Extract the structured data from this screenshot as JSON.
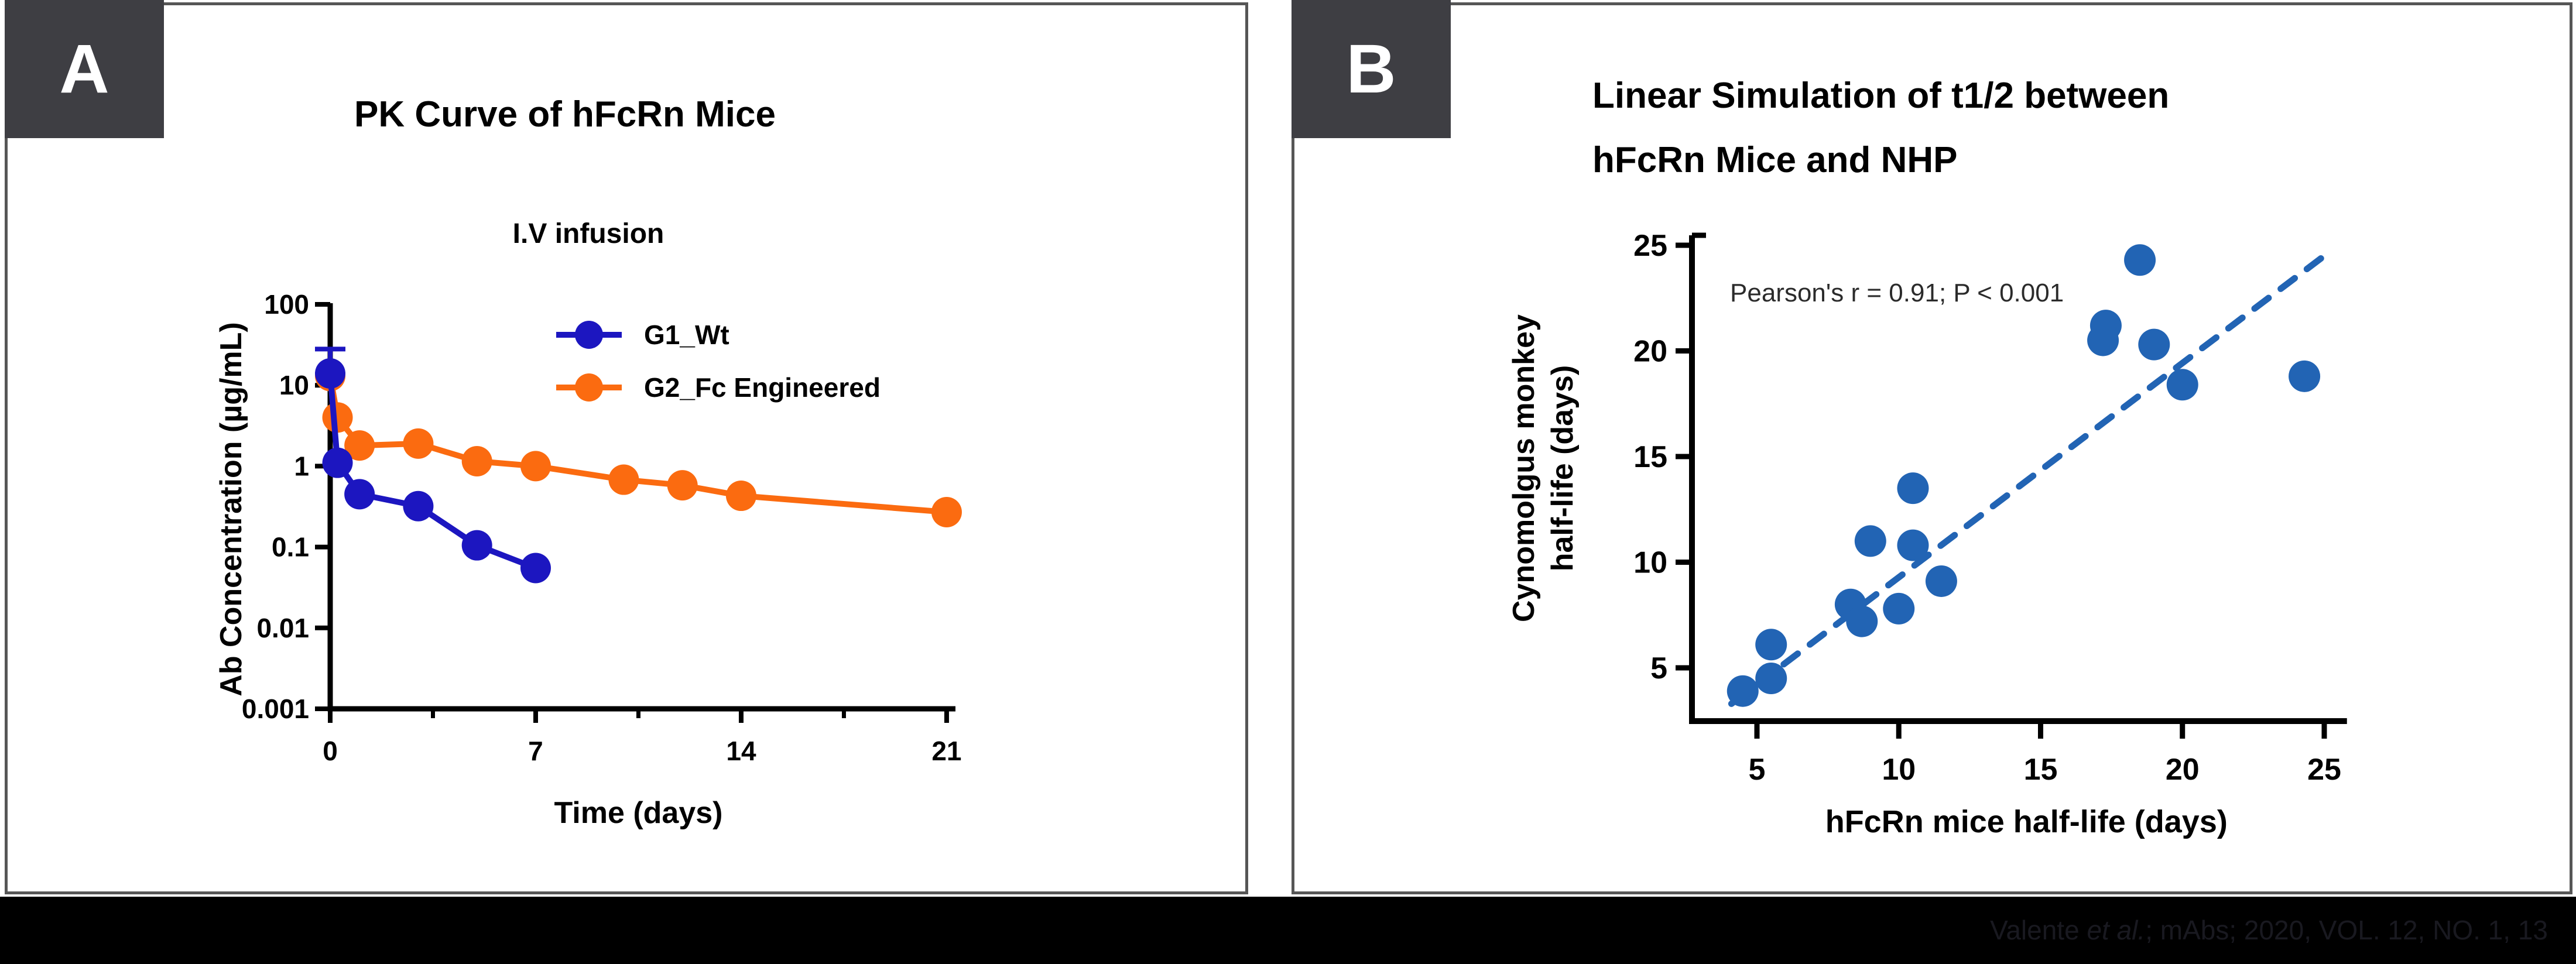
{
  "panels": {
    "a_label": "A",
    "b_label": "B"
  },
  "colors": {
    "badge_bg": "#3e3e43",
    "panel_border": "#565656",
    "axis": "#000000",
    "g1_blue": "#1c16c0",
    "g2_orange": "#fb6b10",
    "scatter_blue": "#2264b4",
    "annotation_text": "#2b2b2b",
    "bottom_bar": "#000000",
    "citation_text": "#191920"
  },
  "citation": {
    "prefix": "Valente ",
    "italic": "et al.",
    "suffix": "; mAbs; 2020, VOL. 12, NO. 1, 13"
  },
  "chart_data": [
    {
      "type": "line",
      "panel": "A",
      "title": "PK Curve of hFcRn Mice",
      "subtitle": "I.V infusion",
      "xlabel": "Time (days)",
      "ylabel": "Ab Concentration (µg/mL)",
      "x_axis": {
        "ticks": [
          0,
          7,
          14,
          21
        ],
        "minor_ticks": [
          3.5,
          10.5,
          17.5
        ],
        "range": [
          0,
          21.3
        ]
      },
      "y_axis": {
        "scale": "log",
        "tick_labels": [
          "100",
          "10",
          "1",
          "0.1",
          "0.01",
          "0.001"
        ],
        "tick_values": [
          100,
          10,
          1,
          0.1,
          0.01,
          0.001
        ],
        "range": [
          0.001,
          100
        ]
      },
      "legend_position": "top-inside",
      "grid": false,
      "series": [
        {
          "name": "G1_Wt",
          "color": "#1c16c0",
          "x": [
            0,
            0.25,
            1,
            3,
            5,
            7
          ],
          "y": [
            14,
            1.1,
            0.45,
            0.32,
            0.105,
            0.055
          ],
          "error_high": [
            28,
            null,
            null,
            null,
            null,
            null
          ]
        },
        {
          "name": "G2_Fc Engineered",
          "color": "#fb6b10",
          "x": [
            0,
            0.25,
            1,
            3,
            5,
            7,
            10,
            12,
            14,
            21
          ],
          "y": [
            13,
            4,
            1.8,
            1.9,
            1.15,
            1.0,
            0.68,
            0.58,
            0.43,
            0.27
          ],
          "error_high": [
            null,
            null,
            null,
            null,
            null,
            null,
            null,
            null,
            null,
            null
          ]
        }
      ]
    },
    {
      "type": "scatter",
      "panel": "B",
      "title_lines": [
        "Linear Simulation of t1/2 between",
        "hFcRn Mice and NHP"
      ],
      "annotation": "Pearson's r = 0.91; P < 0.001",
      "xlabel": "hFcRn mice half-life (days)",
      "ylabel_lines": [
        "Cynomolgus monkey",
        "half-life (days)"
      ],
      "x_axis": {
        "ticks": [
          5,
          10,
          15,
          20,
          25
        ],
        "range": [
          3.5,
          25.8
        ]
      },
      "y_axis": {
        "ticks": [
          5,
          10,
          15,
          20,
          25
        ],
        "range": [
          2.5,
          25.5
        ]
      },
      "point_color": "#2264b4",
      "points": [
        [
          4.5,
          3.9
        ],
        [
          5.5,
          4.5
        ],
        [
          5.5,
          6.1
        ],
        [
          8.3,
          8.0
        ],
        [
          8.7,
          7.2
        ],
        [
          10.0,
          7.8
        ],
        [
          9.0,
          11.0
        ],
        [
          10.5,
          10.8
        ],
        [
          10.5,
          13.5
        ],
        [
          11.5,
          9.1
        ],
        [
          17.2,
          20.5
        ],
        [
          17.3,
          21.2
        ],
        [
          18.5,
          24.3
        ],
        [
          19.0,
          20.3
        ],
        [
          20.0,
          18.4
        ],
        [
          24.3,
          18.8
        ]
      ],
      "trend_line": {
        "style": "dashed",
        "color": "#2264b4",
        "from": [
          4.1,
          3.3
        ],
        "to": [
          25.3,
          24.8
        ]
      }
    }
  ]
}
